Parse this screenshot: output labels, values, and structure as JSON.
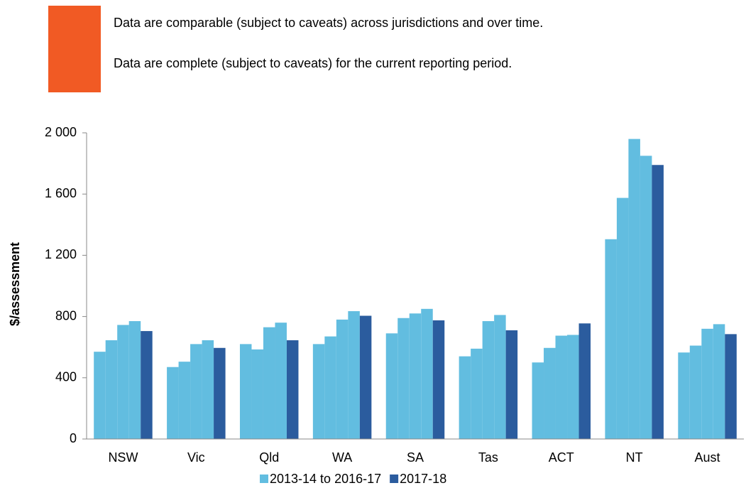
{
  "header": {
    "notes": [
      "Data are comparable (subject to caveats) across jurisdictions and over time.",
      "Data are complete (subject to caveats) for the current reporting period."
    ]
  },
  "chart_data": {
    "type": "grouped-bar",
    "y_label": "$/assessment",
    "categories": [
      "NSW",
      "Vic",
      "Qld",
      "WA",
      "SA",
      "Tas",
      "ACT",
      "NT",
      "Aust"
    ],
    "series": [
      {
        "name": "2013-14 to 2016-17",
        "color": "#62bde0",
        "values": [
          [
            570,
            645,
            745,
            770
          ],
          [
            470,
            505,
            620,
            645
          ],
          [
            620,
            585,
            730,
            760
          ],
          [
            620,
            670,
            780,
            835
          ],
          [
            690,
            790,
            820,
            850
          ],
          [
            540,
            590,
            770,
            810
          ],
          [
            500,
            595,
            675,
            680
          ],
          [
            1305,
            1575,
            1960,
            1850
          ],
          [
            565,
            610,
            720,
            750
          ]
        ]
      },
      {
        "name": "2017-18",
        "color": "#2b5c9e",
        "values": [
          705,
          595,
          645,
          805,
          775,
          710,
          755,
          1790,
          685
        ]
      }
    ],
    "ylim": [
      0,
      2000
    ],
    "yticks": [
      0,
      400,
      800,
      {
        "value": 1200,
        "label": "1 200"
      },
      {
        "value": 1600,
        "label": "1 600"
      },
      {
        "value": 2000,
        "label": "2 000"
      }
    ],
    "grid": false
  }
}
